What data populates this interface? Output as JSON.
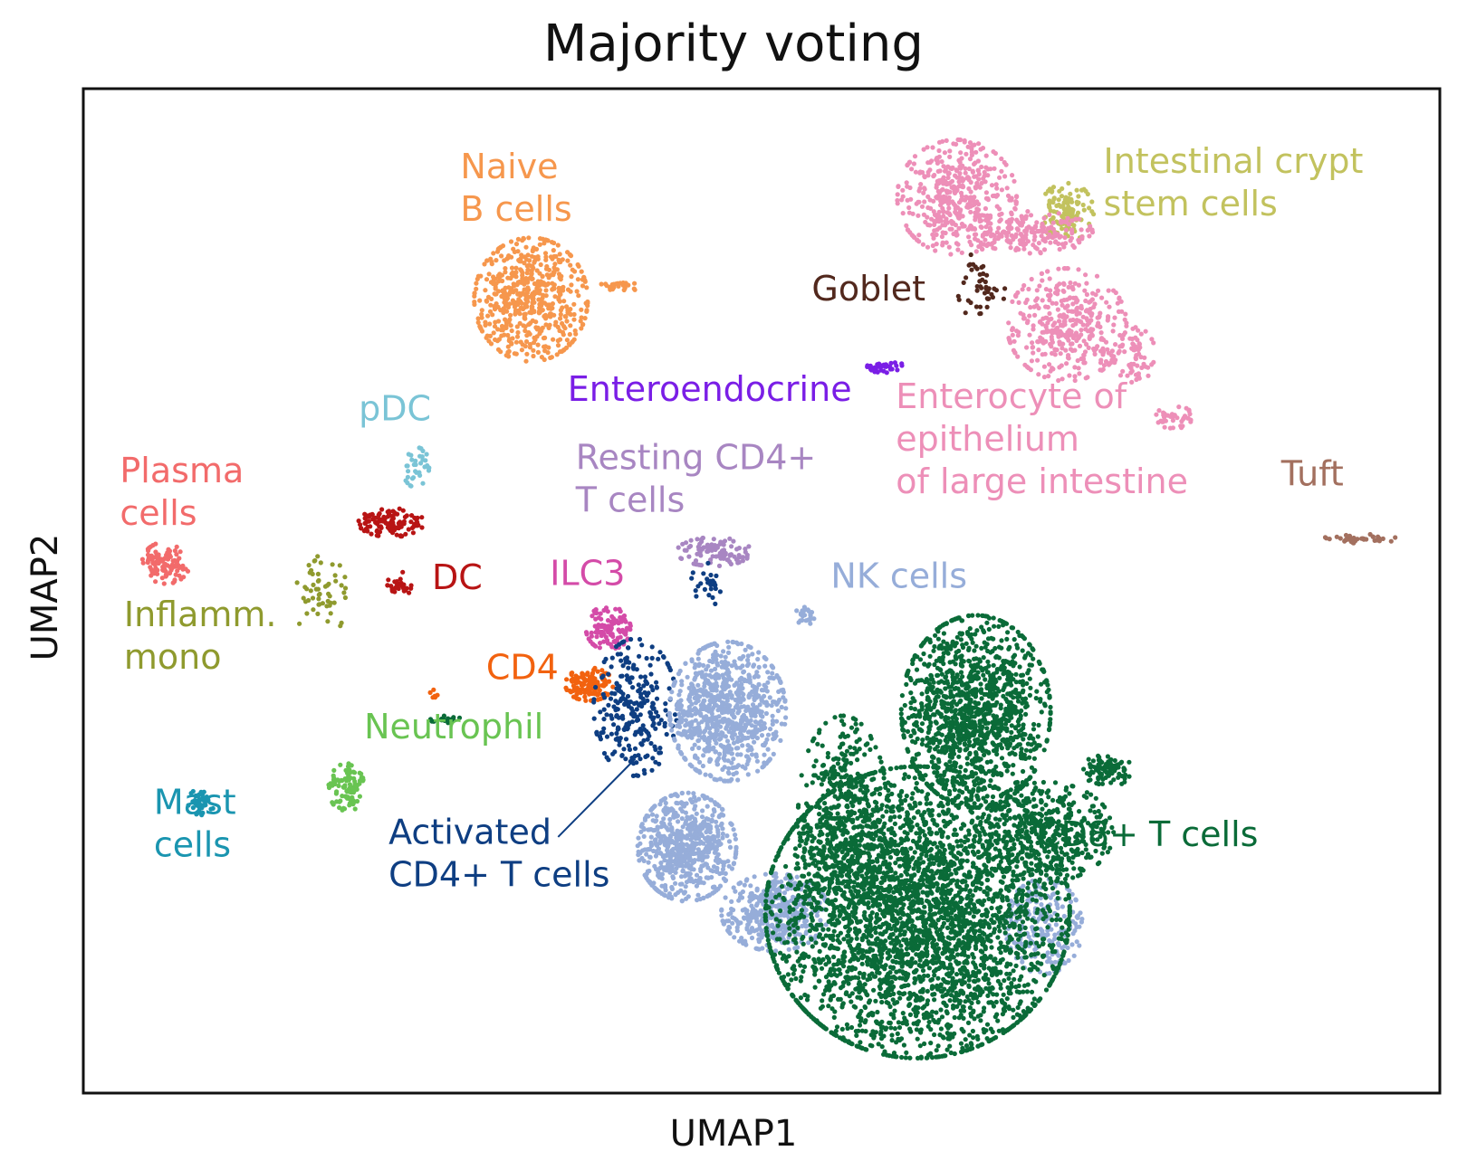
{
  "chart_data": {
    "type": "scatter",
    "title": "Majority voting",
    "xlabel": "UMAP1",
    "ylabel": "UMAP2",
    "grid": false,
    "legend": "none",
    "xlim": [
      0,
      100
    ],
    "ylim": [
      0,
      100
    ],
    "series": [
      {
        "name": "Naive B cells",
        "color": "#f6974d",
        "clusters": [
          {
            "x": 33,
            "y": 79,
            "rx": 3.8,
            "ry": 5.6,
            "n": 550
          },
          {
            "x": 39.5,
            "y": 80.3,
            "rx": 1.4,
            "ry": 0.5,
            "n": 25
          }
        ],
        "label": {
          "lines": [
            "Naive",
            "B cells"
          ],
          "x": 27.8,
          "y": 91.1
        }
      },
      {
        "name": "Intestinal crypt stem cells",
        "color": "#c2c25e",
        "clusters": [
          {
            "x": 72.5,
            "y": 87.7,
            "rx": 1.8,
            "ry": 2.7,
            "n": 120
          }
        ],
        "label": {
          "lines": [
            "Intestinal crypt",
            "stem cells"
          ],
          "x": 75.2,
          "y": 91.6
        }
      },
      {
        "name": "Enterocyte of epithelium of large intestine",
        "color": "#ed8fb8",
        "clusters": [
          {
            "x": 64.4,
            "y": 89.2,
            "rx": 4,
            "ry": 5.2,
            "n": 450
          },
          {
            "x": 70,
            "y": 85.7,
            "rx": 4,
            "ry": 1.9,
            "n": 180
          },
          {
            "x": 72.5,
            "y": 76.5,
            "rx": 4,
            "ry": 5.1,
            "n": 380
          },
          {
            "x": 77.5,
            "y": 73.5,
            "rx": 1.4,
            "ry": 2.5,
            "n": 60
          },
          {
            "x": 80.5,
            "y": 67.3,
            "rx": 1.3,
            "ry": 1.1,
            "n": 40
          }
        ],
        "label": {
          "lines": [
            "Enterocyte of",
            "epithelium",
            "of large intestine"
          ],
          "x": 59.9,
          "y": 68.2
        }
      },
      {
        "name": "Goblet",
        "color": "#52281d",
        "clusters": [
          {
            "x": 66.2,
            "y": 80.3,
            "rx": 1.6,
            "ry": 3.2,
            "n": 45
          }
        ],
        "label": {
          "lines": [
            "Goblet"
          ],
          "x": 53.7,
          "y": 78.9
        }
      },
      {
        "name": "Enteroendocrine",
        "color": "#7a1ee6",
        "clusters": [
          {
            "x": 58.9,
            "y": 72.3,
            "rx": 1.5,
            "ry": 0.6,
            "n": 35
          }
        ],
        "label": {
          "lines": [
            "Enteroendocrine"
          ],
          "x": 35.7,
          "y": 68.9
        }
      },
      {
        "name": "Tuft",
        "color": "#a3705f",
        "clusters": [
          {
            "x": 94.2,
            "y": 55.2,
            "rx": 2.5,
            "ry": 0.4,
            "n": 40
          }
        ],
        "label": {
          "lines": [
            "Tuft"
          ],
          "x": 88.3,
          "y": 60.5
        }
      },
      {
        "name": "pDC",
        "color": "#7ac4d6",
        "clusters": [
          {
            "x": 24.5,
            "y": 62.4,
            "rx": 0.9,
            "ry": 1.9,
            "n": 35
          }
        ],
        "label": {
          "lines": [
            "pDC"
          ],
          "x": 20.3,
          "y": 67
        }
      },
      {
        "name": "Plasma cells",
        "color": "#f26b6b",
        "clusters": [
          {
            "x": 6.1,
            "y": 52.8,
            "rx": 1.6,
            "ry": 1.9,
            "n": 110
          }
        ],
        "label": {
          "lines": [
            "Plasma",
            "cells"
          ],
          "x": 2.7,
          "y": 60.8
        }
      },
      {
        "name": "DC",
        "color": "#b81414",
        "clusters": [
          {
            "x": 22.7,
            "y": 56.8,
            "rx": 2.2,
            "ry": 1.3,
            "n": 110
          },
          {
            "x": 23.3,
            "y": 50.6,
            "rx": 0.8,
            "ry": 1.2,
            "n": 30
          }
        ],
        "label": {
          "lines": [
            "DC"
          ],
          "x": 25.7,
          "y": 50.2
        }
      },
      {
        "name": "Inflamm. mono",
        "color": "#8f9a2e",
        "clusters": [
          {
            "x": 17.5,
            "y": 49.5,
            "rx": 2.0,
            "ry": 3.6,
            "n": 55
          }
        ],
        "label": {
          "lines": [
            "Inflamm.",
            "mono"
          ],
          "x": 3.0,
          "y": 46.5
        }
      },
      {
        "name": "Resting CD4+ T cells",
        "color": "#a886c2",
        "clusters": [
          {
            "x": 46.5,
            "y": 53.9,
            "rx": 2.5,
            "ry": 1.3,
            "n": 100
          }
        ],
        "label": {
          "lines": [
            "Resting CD4+",
            "T cells"
          ],
          "x": 36.3,
          "y": 62.1
        }
      },
      {
        "name": "ILC3",
        "color": "#d44ba8",
        "clusters": [
          {
            "x": 38.7,
            "y": 46.3,
            "rx": 1.5,
            "ry": 2,
            "n": 110
          }
        ],
        "label": {
          "lines": [
            "ILC3"
          ],
          "x": 34.4,
          "y": 50.6
        }
      },
      {
        "name": "CD4",
        "color": "#f2620f",
        "clusters": [
          {
            "x": 37.3,
            "y": 40.7,
            "rx": 1.6,
            "ry": 1.5,
            "n": 130
          },
          {
            "x": 25.8,
            "y": 39.8,
            "rx": 0.3,
            "ry": 0.4,
            "n": 6
          }
        ],
        "label": {
          "lines": [
            "CD4"
          ],
          "x": 29.7,
          "y": 41.2
        }
      },
      {
        "name": "Activated CD4+ T cells",
        "color": "#0e3e82",
        "clusters": [
          {
            "x": 40.7,
            "y": 38.4,
            "rx": 2.8,
            "ry": 6.2,
            "n": 260
          },
          {
            "x": 45.9,
            "y": 50.6,
            "rx": 1,
            "ry": 2.2,
            "n": 25
          }
        ],
        "label": {
          "lines": [
            "Activated",
            "CD4+ T cells"
          ],
          "x": 22.5,
          "y": 24.8
        },
        "leader": {
          "x1": 35,
          "y1": 25.5,
          "x2": 40.7,
          "y2": 33.3
        }
      },
      {
        "name": "Neutrophil",
        "color": "#69c452",
        "clusters": [
          {
            "x": 19.4,
            "y": 30.4,
            "rx": 1.2,
            "ry": 2.2,
            "n": 100
          }
        ],
        "label": {
          "lines": [
            "Neutrophil"
          ],
          "x": 20.7,
          "y": 35.3
        }
      },
      {
        "name": "Mast cells",
        "color": "#1a95b0",
        "clusters": [
          {
            "x": 8.7,
            "y": 29,
            "rx": 0.9,
            "ry": 1.2,
            "n": 40
          }
        ],
        "label": {
          "lines": [
            "Mast",
            "cells"
          ],
          "x": 5.2,
          "y": 27.8
        }
      },
      {
        "name": "NK cells",
        "color": "#96add9",
        "clusters": [
          {
            "x": 47.5,
            "y": 38,
            "rx": 3.9,
            "ry": 6.3,
            "n": 800
          },
          {
            "x": 44.5,
            "y": 24.5,
            "rx": 3.3,
            "ry": 4.9,
            "n": 620
          },
          {
            "x": 51,
            "y": 18,
            "rx": 3.6,
            "ry": 3.5,
            "n": 420
          },
          {
            "x": 70.8,
            "y": 16.6,
            "rx": 2.6,
            "ry": 4.3,
            "n": 200
          },
          {
            "x": 53.2,
            "y": 47.5,
            "rx": 0.7,
            "ry": 0.8,
            "n": 25
          }
        ],
        "label": {
          "lines": [
            "NK cells"
          ],
          "x": 55.1,
          "y": 50.3
        }
      },
      {
        "name": "CD8+ T cells",
        "color": "#0a6b38",
        "clusters": [
          {
            "x": 61.5,
            "y": 18,
            "rx": 10.2,
            "ry": 13.2,
            "n": 3400
          },
          {
            "x": 65.8,
            "y": 38,
            "rx": 5,
            "ry": 8.7,
            "n": 1200
          },
          {
            "x": 56,
            "y": 28,
            "rx": 3,
            "ry": 8.7,
            "n": 420
          },
          {
            "x": 71,
            "y": 26,
            "rx": 4.5,
            "ry": 4.5,
            "n": 400
          },
          {
            "x": 75.5,
            "y": 32.2,
            "rx": 1.6,
            "ry": 1.6,
            "n": 90
          },
          {
            "x": 26.8,
            "y": 37.2,
            "rx": 1.1,
            "ry": 0.4,
            "n": 14
          }
        ],
        "label": {
          "lines": [
            "CD8+ T cells"
          ],
          "x": 70.3,
          "y": 24.6
        }
      }
    ]
  }
}
